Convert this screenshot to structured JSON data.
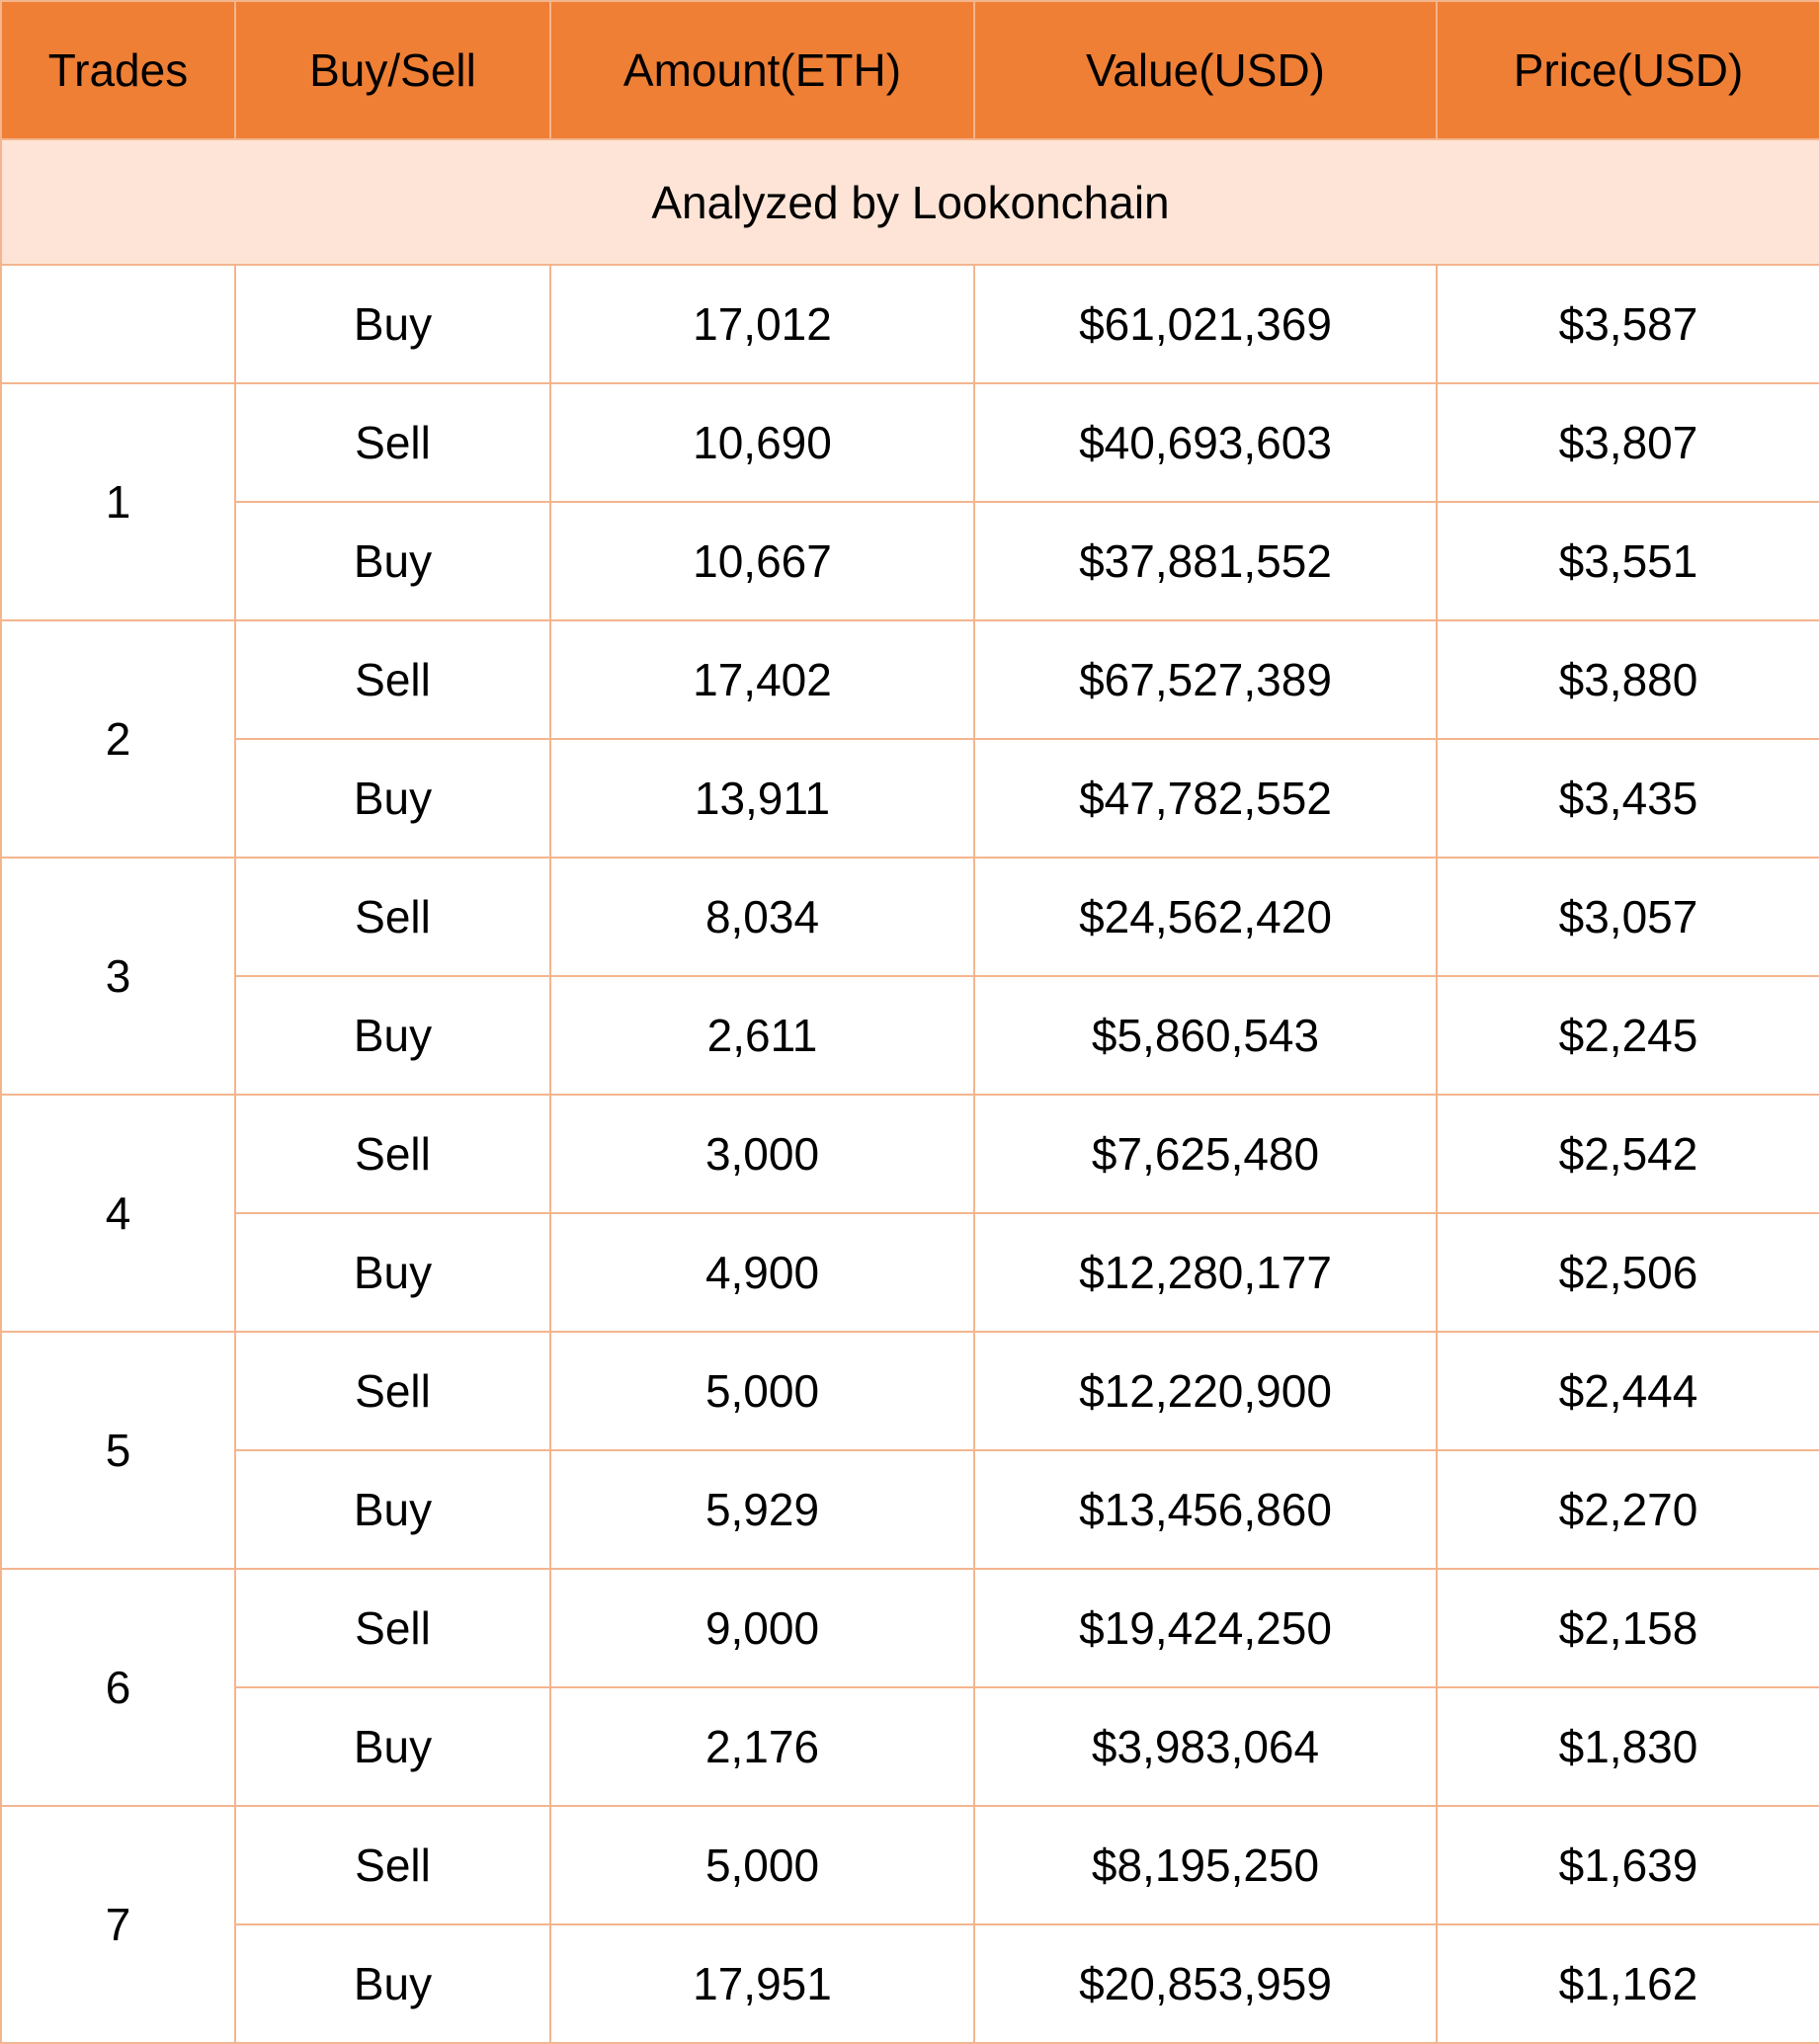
{
  "table": {
    "headers": [
      "Trades",
      "Buy/Sell",
      "Amount(ETH)",
      "Value(USD)",
      "Price(USD)"
    ],
    "caption": "Analyzed by Lookonchain",
    "first_row": {
      "side": "Buy",
      "amount": "17,012",
      "value": "$61,021,369",
      "price": "$3,587"
    },
    "groups": [
      {
        "trade": "1",
        "rows": [
          {
            "side": "Sell",
            "amount": "10,690",
            "value": "$40,693,603",
            "price": "$3,807"
          },
          {
            "side": "Buy",
            "amount": "10,667",
            "value": "$37,881,552",
            "price": "$3,551"
          }
        ]
      },
      {
        "trade": "2",
        "rows": [
          {
            "side": "Sell",
            "amount": "17,402",
            "value": "$67,527,389",
            "price": "$3,880"
          },
          {
            "side": "Buy",
            "amount": "13,911",
            "value": "$47,782,552",
            "price": "$3,435"
          }
        ]
      },
      {
        "trade": "3",
        "rows": [
          {
            "side": "Sell",
            "amount": "8,034",
            "value": "$24,562,420",
            "price": "$3,057"
          },
          {
            "side": "Buy",
            "amount": "2,611",
            "value": "$5,860,543",
            "price": "$2,245"
          }
        ]
      },
      {
        "trade": "4",
        "rows": [
          {
            "side": "Sell",
            "amount": "3,000",
            "value": "$7,625,480",
            "price": "$2,542"
          },
          {
            "side": "Buy",
            "amount": "4,900",
            "value": "$12,280,177",
            "price": "$2,506"
          }
        ]
      },
      {
        "trade": "5",
        "rows": [
          {
            "side": "Sell",
            "amount": "5,000",
            "value": "$12,220,900",
            "price": "$2,444"
          },
          {
            "side": "Buy",
            "amount": "5,929",
            "value": "$13,456,860",
            "price": "$2,270"
          }
        ]
      },
      {
        "trade": "6",
        "rows": [
          {
            "side": "Sell",
            "amount": "9,000",
            "value": "$19,424,250",
            "price": "$2,158"
          },
          {
            "side": "Buy",
            "amount": "2,176",
            "value": "$3,983,064",
            "price": "$1,830"
          }
        ]
      },
      {
        "trade": "7",
        "rows": [
          {
            "side": "Sell",
            "amount": "5,000",
            "value": "$8,195,250",
            "price": "$1,639"
          },
          {
            "side": "Buy",
            "amount": "17,951",
            "value": "$20,853,959",
            "price": "$1,162"
          }
        ]
      }
    ],
    "colors": {
      "header_bg": "#ee7f35",
      "caption_bg": "#fde4d6",
      "border": "#f4b58e"
    }
  }
}
